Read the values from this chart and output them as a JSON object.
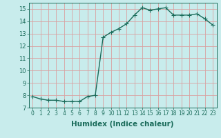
{
  "x": [
    0,
    1,
    2,
    3,
    4,
    5,
    6,
    7,
    8,
    9,
    10,
    11,
    12,
    13,
    14,
    15,
    16,
    17,
    18,
    19,
    20,
    21,
    22,
    23
  ],
  "y": [
    7.9,
    7.7,
    7.6,
    7.6,
    7.5,
    7.5,
    7.5,
    7.9,
    8.0,
    12.7,
    13.1,
    13.4,
    13.8,
    14.5,
    15.1,
    14.9,
    15.0,
    15.1,
    14.5,
    14.5,
    14.5,
    14.6,
    14.2,
    13.7
  ],
  "line_color": "#1a6b5a",
  "bg_color": "#c8ecec",
  "grid_color_major": "#d9a0a0",
  "grid_color_minor": "#d9a0a0",
  "xlabel": "Humidex (Indice chaleur)",
  "xlim": [
    -0.5,
    23.5
  ],
  "ylim": [
    7,
    15.5
  ],
  "yticks": [
    7,
    8,
    9,
    10,
    11,
    12,
    13,
    14,
    15
  ],
  "xtick_labels": [
    "0",
    "1",
    "2",
    "3",
    "4",
    "5",
    "6",
    "7",
    "8",
    "9",
    "10",
    "11",
    "12",
    "13",
    "14",
    "15",
    "16",
    "17",
    "18",
    "19",
    "20",
    "21",
    "22",
    "23"
  ],
  "marker": "+",
  "markersize": 4,
  "linewidth": 1.0,
  "tick_fontsize": 5.5,
  "xlabel_fontsize": 7.5
}
